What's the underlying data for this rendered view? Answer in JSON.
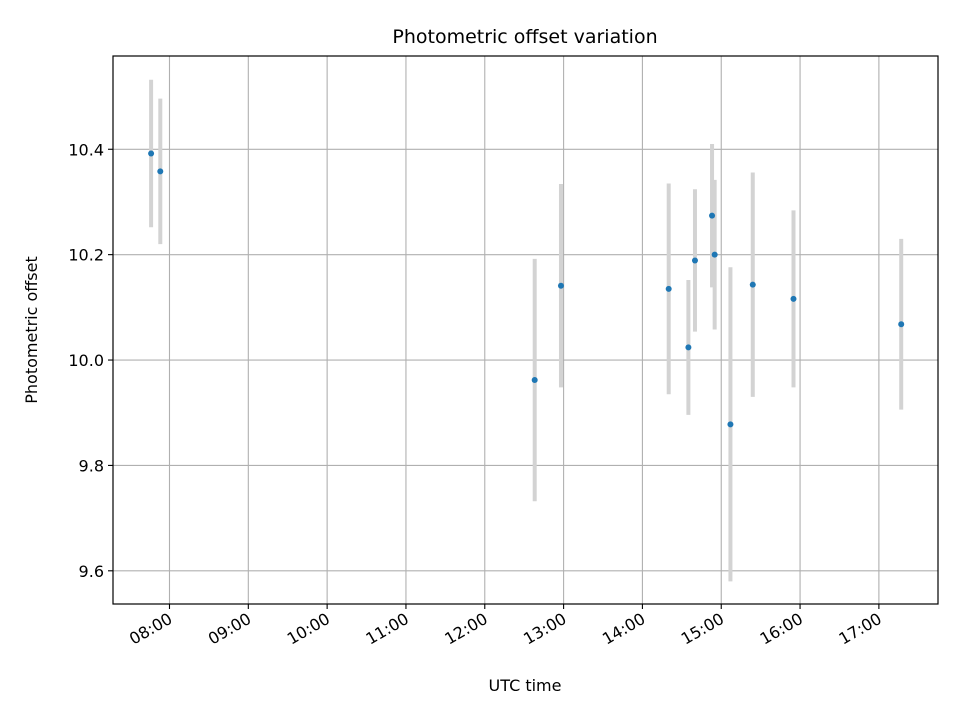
{
  "chart_data": {
    "type": "scatter",
    "title": "Photometric offset variation",
    "xlabel": "UTC time",
    "ylabel": "Photometric offset",
    "xlim": [
      "07:17",
      "17:45"
    ],
    "ylim": [
      9.537,
      10.577
    ],
    "x_ticks": [
      "08:00",
      "09:00",
      "10:00",
      "11:00",
      "12:00",
      "13:00",
      "14:00",
      "15:00",
      "16:00",
      "17:00"
    ],
    "y_ticks": [
      9.6,
      9.8,
      10.0,
      10.2,
      10.4
    ],
    "y_tick_labels": [
      "9.6",
      "9.8",
      "10.0",
      "10.2",
      "10.4"
    ],
    "grid": true,
    "points": [
      {
        "x": "07:46",
        "y": 10.392,
        "err": 0.14
      },
      {
        "x": "07:53",
        "y": 10.358,
        "err": 0.138
      },
      {
        "x": "12:38",
        "y": 9.962,
        "err": 0.23
      },
      {
        "x": "12:58",
        "y": 10.141,
        "err": 0.193
      },
      {
        "x": "14:20",
        "y": 10.135,
        "err": 0.2
      },
      {
        "x": "14:35",
        "y": 10.024,
        "err": 0.128
      },
      {
        "x": "14:40",
        "y": 10.189,
        "err": 0.135
      },
      {
        "x": "14:53",
        "y": 10.274,
        "err": 0.136
      },
      {
        "x": "14:55",
        "y": 10.2,
        "err": 0.142
      },
      {
        "x": "15:07",
        "y": 9.878,
        "err": 0.298
      },
      {
        "x": "15:24",
        "y": 10.143,
        "err": 0.213
      },
      {
        "x": "15:55",
        "y": 10.116,
        "err": 0.168
      },
      {
        "x": "17:17",
        "y": 10.068,
        "err": 0.162
      }
    ],
    "point_color": "#1f77b4",
    "errorbar_color": "#d3d3d3",
    "grid_color": "#b0b0b0"
  }
}
